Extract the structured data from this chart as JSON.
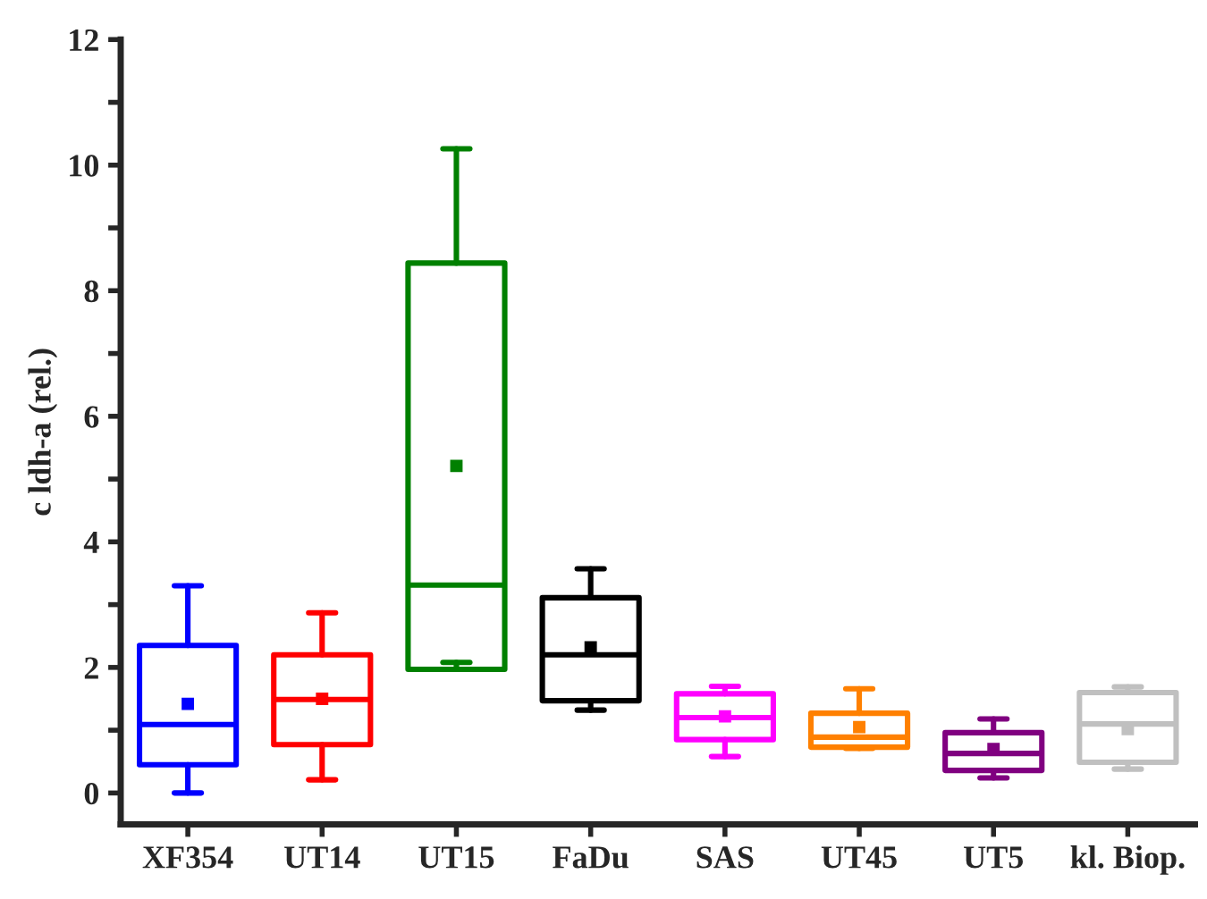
{
  "chart_data": {
    "type": "box",
    "ylabel": "c ldh-a (rel.)",
    "categories": [
      "XF354",
      "UT14",
      "UT15",
      "FaDu",
      "SAS",
      "UT45",
      "UT5",
      "kl. Biop."
    ],
    "colors": [
      "#0000ff",
      "#ff0000",
      "#008000",
      "#000000",
      "#ff00ff",
      "#ff8000",
      "#800080",
      "#c0c0c0"
    ],
    "boxes": [
      {
        "low": 0,
        "q1": 0.45,
        "median": 1.09,
        "q3": 2.35,
        "high": 3.3,
        "mean": 1.42
      },
      {
        "low": 0.21,
        "q1": 0.77,
        "median": 1.49,
        "q3": 2.2,
        "high": 2.87,
        "mean": 1.5
      },
      {
        "low": 2.08,
        "q1": 1.97,
        "median": 3.31,
        "q3": 8.44,
        "high": 10.26,
        "mean": 5.21
      },
      {
        "low": 1.32,
        "q1": 1.47,
        "median": 2.2,
        "q3": 3.11,
        "high": 3.57,
        "mean": 2.32
      },
      {
        "low": 0.58,
        "q1": 0.85,
        "median": 1.2,
        "q3": 1.58,
        "high": 1.7,
        "mean": 1.22
      },
      {
        "low": 0.71,
        "q1": 0.73,
        "median": 0.89,
        "q3": 1.27,
        "high": 1.66,
        "mean": 1.05
      },
      {
        "low": 0.24,
        "q1": 0.36,
        "median": 0.63,
        "q3": 0.96,
        "high": 1.18,
        "mean": 0.7
      },
      {
        "low": 0.38,
        "q1": 0.49,
        "median": 1.1,
        "q3": 1.6,
        "high": 1.69,
        "mean": 1.02
      }
    ],
    "ylim": [
      -0.5,
      12
    ],
    "yticks": [
      0,
      {
        "value": 1,
        "label": null
      },
      2,
      {
        "value": 3,
        "label": null
      },
      4,
      {
        "value": 5,
        "label": null
      },
      6,
      {
        "value": 7,
        "label": null
      },
      8,
      {
        "value": 9,
        "label": null
      },
      10,
      {
        "value": 11,
        "label": null
      },
      12
    ],
    "grid": false
  }
}
